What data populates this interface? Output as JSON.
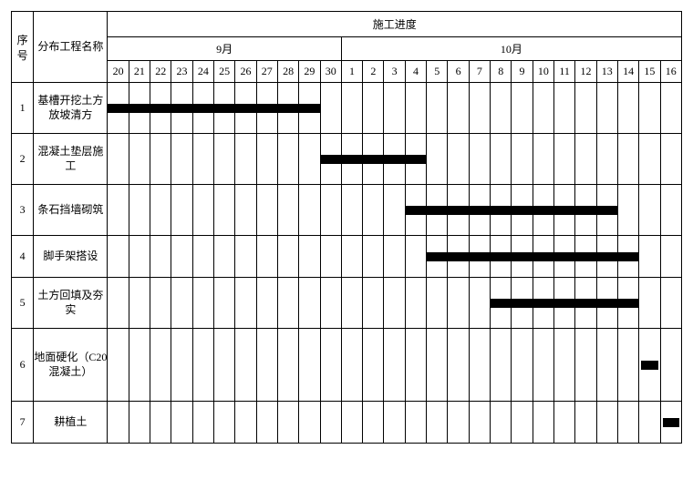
{
  "headers": {
    "seq": "序号",
    "name": "分布工程名称",
    "schedule": "施工进度",
    "month1": "9月",
    "month2": "10月"
  },
  "days_sep": [
    "20",
    "21",
    "22",
    "23",
    "24",
    "25",
    "26",
    "27",
    "28",
    "29",
    "30"
  ],
  "days_oct": [
    "1",
    "2",
    "3",
    "4",
    "5",
    "6",
    "7",
    "8",
    "9",
    "10",
    "11",
    "12",
    "13",
    "14",
    "15",
    "16"
  ],
  "tasks": [
    {
      "seq": "1",
      "name": "基槽开挖土方放坡清方",
      "start": 0,
      "end": 9,
      "tall": false
    },
    {
      "seq": "2",
      "name": "混凝土垫层施工",
      "start": 10,
      "end": 14,
      "tall": false
    },
    {
      "seq": "3",
      "name": "条石挡墙砌筑",
      "start": 14,
      "end": 23,
      "tall": false
    },
    {
      "seq": "4",
      "name": "脚手架搭设",
      "start": 15,
      "end": 24,
      "tall": false,
      "short": true
    },
    {
      "seq": "5",
      "name": "土方回填及夯实",
      "start": 18,
      "end": 24,
      "tall": false
    },
    {
      "seq": "6",
      "name": "地面硬化（C20混凝土）",
      "start": 25,
      "end": 25,
      "tall": true
    },
    {
      "seq": "7",
      "name": "耕植土",
      "start": 26,
      "end": 26,
      "tall": false,
      "short": true
    }
  ],
  "style": {
    "bar_color": "#000000",
    "border_color": "#000000",
    "background": "#ffffff",
    "total_days": 27
  }
}
